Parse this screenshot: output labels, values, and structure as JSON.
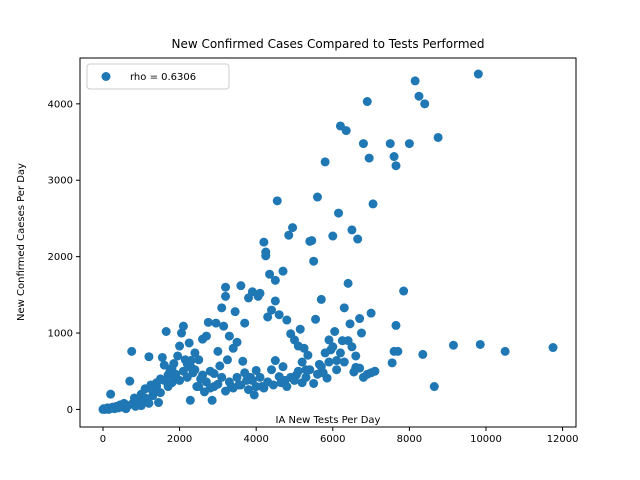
{
  "chart_data": {
    "type": "scatter",
    "title": "New Confirmed Cases Compared to Tests Performed",
    "xlabel": "IA New Tests Per Day",
    "ylabel": "New Confirmed Caeses Per Day",
    "xlim": [
      -600,
      12350
    ],
    "ylim": [
      -230,
      4600
    ],
    "xticks": [
      0,
      2000,
      4000,
      6000,
      8000,
      10000,
      12000
    ],
    "yticks": [
      0,
      1000,
      2000,
      3000,
      4000
    ],
    "grid": false,
    "legend_position": "upper-left",
    "color": "#1f77b4",
    "series": [
      {
        "name": "rho = 0.6306",
        "points": [
          [
            0,
            0
          ],
          [
            20,
            10
          ],
          [
            50,
            0
          ],
          [
            80,
            5
          ],
          [
            120,
            20
          ],
          [
            150,
            0
          ],
          [
            200,
            200
          ],
          [
            250,
            30
          ],
          [
            300,
            10
          ],
          [
            350,
            40
          ],
          [
            400,
            20
          ],
          [
            450,
            60
          ],
          [
            500,
            30
          ],
          [
            550,
            80
          ],
          [
            600,
            10
          ],
          [
            650,
            50
          ],
          [
            700,
            370
          ],
          [
            750,
            760
          ],
          [
            780,
            80
          ],
          [
            820,
            150
          ],
          [
            850,
            40
          ],
          [
            900,
            120
          ],
          [
            950,
            60
          ],
          [
            1000,
            200
          ],
          [
            1050,
            150
          ],
          [
            1100,
            270
          ],
          [
            1150,
            100
          ],
          [
            1200,
            690
          ],
          [
            1250,
            320
          ],
          [
            1300,
            180
          ],
          [
            1350,
            250
          ],
          [
            1400,
            350
          ],
          [
            1450,
            90
          ],
          [
            1500,
            400
          ],
          [
            1550,
            680
          ],
          [
            1600,
            580
          ],
          [
            1650,
            1020
          ],
          [
            1700,
            450
          ],
          [
            1750,
            500
          ],
          [
            1800,
            350
          ],
          [
            1850,
            600
          ],
          [
            1900,
            420
          ],
          [
            1950,
            700
          ],
          [
            2000,
            830
          ],
          [
            2050,
            1000
          ],
          [
            2100,
            1090
          ],
          [
            2150,
            650
          ],
          [
            2200,
            600
          ],
          [
            2250,
            870
          ],
          [
            2280,
            120
          ],
          [
            2300,
            550
          ],
          [
            2350,
            480
          ],
          [
            2400,
            740
          ],
          [
            2450,
            300
          ],
          [
            2500,
            650
          ],
          [
            2550,
            400
          ],
          [
            2600,
            920
          ],
          [
            2650,
            230
          ],
          [
            2700,
            960
          ],
          [
            2750,
            1140
          ],
          [
            2800,
            500
          ],
          [
            2850,
            120
          ],
          [
            2900,
            300
          ],
          [
            2950,
            1130
          ],
          [
            3000,
            760
          ],
          [
            3050,
            570
          ],
          [
            3100,
            1330
          ],
          [
            3150,
            1090
          ],
          [
            3200,
            1480
          ],
          [
            3200,
            1600
          ],
          [
            3250,
            650
          ],
          [
            3300,
            960
          ],
          [
            3350,
            300
          ],
          [
            3400,
            800
          ],
          [
            3450,
            1280
          ],
          [
            3500,
            880
          ],
          [
            3550,
            320
          ],
          [
            3600,
            1620
          ],
          [
            3650,
            630
          ],
          [
            3700,
            1130
          ],
          [
            3750,
            380
          ],
          [
            3800,
            1460
          ],
          [
            3850,
            420
          ],
          [
            3900,
            1540
          ],
          [
            3950,
            190
          ],
          [
            4000,
            510
          ],
          [
            4050,
            1480
          ],
          [
            4100,
            1520
          ],
          [
            4150,
            300
          ],
          [
            4200,
            2190
          ],
          [
            4250,
            2060
          ],
          [
            4250,
            2010
          ],
          [
            4300,
            1210
          ],
          [
            4350,
            1770
          ],
          [
            4400,
            1300
          ],
          [
            4450,
            320
          ],
          [
            4500,
            1690
          ],
          [
            4500,
            1420
          ],
          [
            4550,
            2730
          ],
          [
            4600,
            1240
          ],
          [
            4650,
            350
          ],
          [
            4700,
            1810
          ],
          [
            4750,
            380
          ],
          [
            4800,
            1170
          ],
          [
            4850,
            2280
          ],
          [
            4900,
            990
          ],
          [
            4950,
            2380
          ],
          [
            5000,
            910
          ],
          [
            5050,
            450
          ],
          [
            5100,
            830
          ],
          [
            5150,
            1050
          ],
          [
            5200,
            350
          ],
          [
            5250,
            800
          ],
          [
            5300,
            520
          ],
          [
            5350,
            710
          ],
          [
            5400,
            2200
          ],
          [
            5450,
            2210
          ],
          [
            5500,
            1940
          ],
          [
            5550,
            1180
          ],
          [
            5600,
            2780
          ],
          [
            5650,
            590
          ],
          [
            5700,
            1440
          ],
          [
            5750,
            480
          ],
          [
            5800,
            3240
          ],
          [
            5850,
            410
          ],
          [
            5900,
            910
          ],
          [
            5950,
            780
          ],
          [
            6000,
            2270
          ],
          [
            6050,
            1020
          ],
          [
            6100,
            640
          ],
          [
            6150,
            2570
          ],
          [
            6200,
            3710
          ],
          [
            6250,
            900
          ],
          [
            6300,
            1330
          ],
          [
            6350,
            3650
          ],
          [
            6400,
            1650
          ],
          [
            6450,
            1120
          ],
          [
            6500,
            2350
          ],
          [
            6550,
            490
          ],
          [
            6600,
            550
          ],
          [
            6650,
            2230
          ],
          [
            6700,
            1190
          ],
          [
            6750,
            1000
          ],
          [
            6800,
            3480
          ],
          [
            6900,
            4030
          ],
          [
            6950,
            3290
          ],
          [
            7000,
            1260
          ],
          [
            7050,
            2690
          ],
          [
            7100,
            500
          ],
          [
            7500,
            3480
          ],
          [
            7550,
            610
          ],
          [
            7600,
            3310
          ],
          [
            7650,
            3190
          ],
          [
            7650,
            1100
          ],
          [
            7700,
            760
          ],
          [
            7850,
            1550
          ],
          [
            8000,
            3480
          ],
          [
            8150,
            4300
          ],
          [
            8250,
            4100
          ],
          [
            8350,
            720
          ],
          [
            8400,
            4000
          ],
          [
            8650,
            300
          ],
          [
            8750,
            3560
          ],
          [
            9150,
            840
          ],
          [
            9800,
            4390
          ],
          [
            9850,
            850
          ],
          [
            10500,
            760
          ],
          [
            11750,
            810
          ],
          [
            1000,
            50
          ],
          [
            1100,
            150
          ],
          [
            1200,
            80
          ],
          [
            1300,
            240
          ],
          [
            1400,
            300
          ],
          [
            1500,
            220
          ],
          [
            1600,
            380
          ],
          [
            1700,
            300
          ],
          [
            1800,
            540
          ],
          [
            1900,
            460
          ],
          [
            2000,
            380
          ],
          [
            2100,
            500
          ],
          [
            2200,
            420
          ],
          [
            2300,
            640
          ],
          [
            2400,
            520
          ],
          [
            2500,
            300
          ],
          [
            2600,
            450
          ],
          [
            2700,
            360
          ],
          [
            2800,
            280
          ],
          [
            2900,
            470
          ],
          [
            3000,
            330
          ],
          [
            3100,
            420
          ],
          [
            3200,
            240
          ],
          [
            3300,
            360
          ],
          [
            3400,
            280
          ],
          [
            3500,
            420
          ],
          [
            3600,
            320
          ],
          [
            3700,
            480
          ],
          [
            3800,
            260
          ],
          [
            3900,
            380
          ],
          [
            4000,
            300
          ],
          [
            4100,
            420
          ],
          [
            4200,
            280
          ],
          [
            4300,
            360
          ],
          [
            4400,
            520
          ],
          [
            4500,
            640
          ],
          [
            4600,
            430
          ],
          [
            4700,
            560
          ],
          [
            4800,
            300
          ],
          [
            4900,
            420
          ],
          [
            5000,
            380
          ],
          [
            5100,
            500
          ],
          [
            5200,
            620
          ],
          [
            5300,
            420
          ],
          [
            5400,
            520
          ],
          [
            5500,
            340
          ],
          [
            5600,
            460
          ],
          [
            5700,
            560
          ],
          [
            5800,
            740
          ],
          [
            5900,
            620
          ],
          [
            6000,
            820
          ],
          [
            6100,
            520
          ],
          [
            6200,
            740
          ],
          [
            6300,
            620
          ],
          [
            6400,
            900
          ],
          [
            6500,
            820
          ],
          [
            6600,
            700
          ],
          [
            6700,
            540
          ],
          [
            6800,
            420
          ],
          [
            6900,
            460
          ],
          [
            7000,
            480
          ],
          [
            7600,
            760
          ]
        ]
      }
    ]
  }
}
